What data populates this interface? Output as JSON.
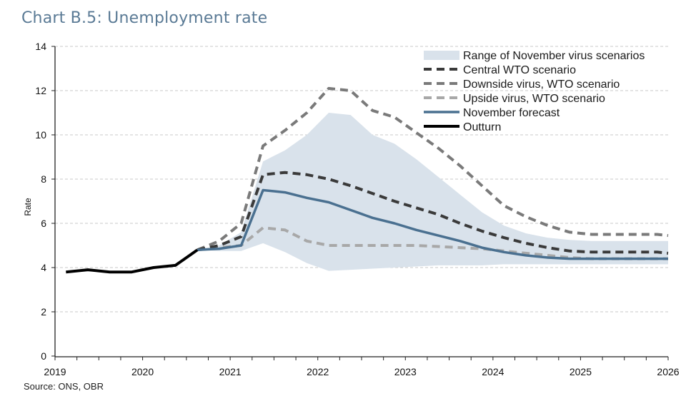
{
  "chart_data": {
    "type": "line",
    "title": "Chart B.5: Unemployment rate",
    "source": "Source: ONS, OBR",
    "xlabel": "",
    "ylabel": "Rate",
    "xlim": [
      2019,
      2026
    ],
    "ylim": [
      0,
      14
    ],
    "x_ticks": [
      "2019",
      "2020",
      "2021",
      "2022",
      "2023",
      "2024",
      "2025",
      "2026"
    ],
    "y_ticks": [
      "0",
      "2",
      "4",
      "6",
      "8",
      "10",
      "12",
      "14"
    ],
    "grid": true,
    "legend_position": "top-right",
    "legend": [
      {
        "key": "range",
        "label": "Range of November virus scenarios"
      },
      {
        "key": "central",
        "label": "Central WTO scenario"
      },
      {
        "key": "downside",
        "label": "Downside virus, WTO scenario"
      },
      {
        "key": "upside",
        "label": "Upside virus, WTO scenario"
      },
      {
        "key": "forecast",
        "label": "November forecast"
      },
      {
        "key": "outturn",
        "label": "Outturn"
      }
    ],
    "colors": {
      "range": "#d9e2eb",
      "central": "#3a3a3a",
      "downside": "#7a7a7a",
      "upside": "#a8a8a8",
      "forecast": "#4a7090",
      "outturn": "#000000",
      "title": "#5a7a95"
    },
    "series": [
      {
        "name": "Outturn",
        "key": "outturn",
        "x": [
          2019.125,
          2019.375,
          2019.625,
          2019.875,
          2020.125,
          2020.375,
          2020.625
        ],
        "values": [
          3.8,
          3.9,
          3.8,
          3.8,
          4.0,
          4.1,
          4.8
        ]
      },
      {
        "name": "November forecast",
        "key": "forecast",
        "x": [
          2020.625,
          2020.875,
          2021.125,
          2021.375,
          2021.625,
          2021.875,
          2022.125,
          2022.375,
          2022.625,
          2022.875,
          2023.125,
          2023.375,
          2023.625,
          2023.875,
          2024.125,
          2024.375,
          2024.625,
          2024.875,
          2025.125,
          2025.375,
          2025.625,
          2025.875,
          2026.0
        ],
        "values": [
          4.8,
          4.85,
          5.0,
          7.5,
          7.4,
          7.15,
          6.95,
          6.6,
          6.25,
          6.0,
          5.7,
          5.45,
          5.2,
          4.9,
          4.7,
          4.55,
          4.45,
          4.4,
          4.4,
          4.4,
          4.4,
          4.4,
          4.4
        ]
      },
      {
        "name": "Central WTO scenario",
        "key": "central",
        "x": [
          2020.625,
          2020.875,
          2021.125,
          2021.375,
          2021.625,
          2021.875,
          2022.125,
          2022.375,
          2022.625,
          2022.875,
          2023.125,
          2023.375,
          2023.625,
          2023.875,
          2024.125,
          2024.375,
          2024.625,
          2024.875,
          2025.125,
          2025.375,
          2025.625,
          2025.875,
          2026.0
        ],
        "values": [
          4.8,
          5.0,
          5.4,
          8.2,
          8.3,
          8.2,
          8.0,
          7.7,
          7.35,
          7.0,
          6.7,
          6.4,
          6.0,
          5.65,
          5.35,
          5.1,
          4.9,
          4.75,
          4.7,
          4.7,
          4.7,
          4.7,
          4.65
        ]
      },
      {
        "name": "Downside virus, WTO scenario",
        "key": "downside",
        "x": [
          2020.625,
          2020.875,
          2021.125,
          2021.375,
          2021.625,
          2021.875,
          2022.125,
          2022.375,
          2022.625,
          2022.875,
          2023.125,
          2023.375,
          2023.625,
          2023.875,
          2024.125,
          2024.375,
          2024.625,
          2024.875,
          2025.125,
          2025.375,
          2025.625,
          2025.875,
          2026.0
        ],
        "values": [
          4.8,
          5.2,
          6.0,
          9.5,
          10.2,
          11.0,
          12.1,
          12.0,
          11.1,
          10.8,
          10.1,
          9.4,
          8.6,
          7.7,
          6.8,
          6.3,
          5.9,
          5.6,
          5.5,
          5.5,
          5.5,
          5.5,
          5.45
        ]
      },
      {
        "name": "Upside virus, WTO scenario",
        "key": "upside",
        "x": [
          2020.625,
          2020.875,
          2021.125,
          2021.375,
          2021.625,
          2021.875,
          2022.125,
          2022.375,
          2022.625,
          2022.875,
          2023.125,
          2023.375,
          2023.625,
          2023.875,
          2024.125,
          2024.375,
          2024.625,
          2024.875,
          2025.125,
          2025.375,
          2025.625,
          2025.875,
          2026.0
        ],
        "values": [
          4.8,
          4.9,
          5.0,
          5.8,
          5.7,
          5.2,
          5.0,
          5.0,
          5.0,
          5.0,
          5.0,
          4.95,
          4.9,
          4.85,
          4.75,
          4.65,
          4.55,
          4.45,
          4.4,
          4.4,
          4.4,
          4.4,
          4.4
        ]
      },
      {
        "name": "Range of November virus scenarios",
        "key": "range",
        "x": [
          2020.625,
          2020.875,
          2021.125,
          2021.375,
          2021.625,
          2021.875,
          2022.125,
          2022.375,
          2022.625,
          2022.875,
          2023.125,
          2023.375,
          2023.625,
          2023.875,
          2024.125,
          2024.375,
          2024.625,
          2024.875,
          2025.125,
          2025.375,
          2025.625,
          2025.875,
          2026.0
        ],
        "upper": [
          4.8,
          5.0,
          5.6,
          8.8,
          9.3,
          10.0,
          11.0,
          10.9,
          10.0,
          9.6,
          8.9,
          8.1,
          7.3,
          6.5,
          5.9,
          5.55,
          5.35,
          5.25,
          5.2,
          5.2,
          5.2,
          5.2,
          5.2
        ],
        "lower": [
          4.8,
          4.75,
          4.75,
          5.1,
          4.7,
          4.2,
          3.85,
          3.9,
          3.95,
          4.0,
          4.05,
          4.1,
          4.1,
          4.1,
          4.15,
          4.15,
          4.15,
          4.15,
          4.15,
          4.15,
          4.15,
          4.15,
          4.15
        ]
      }
    ]
  }
}
